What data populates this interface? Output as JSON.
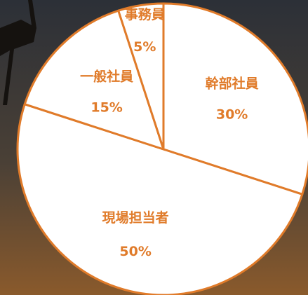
{
  "chart_data": {
    "type": "pie",
    "categories": [
      "幹部社員",
      "現場担当者",
      "一般社員",
      "事務員"
    ],
    "values": [
      30,
      50,
      15,
      5
    ],
    "value_labels": [
      "30%",
      "50%",
      "15%",
      "5%"
    ],
    "color": "#ffffff",
    "edge_color": "#e07b2a"
  }
}
